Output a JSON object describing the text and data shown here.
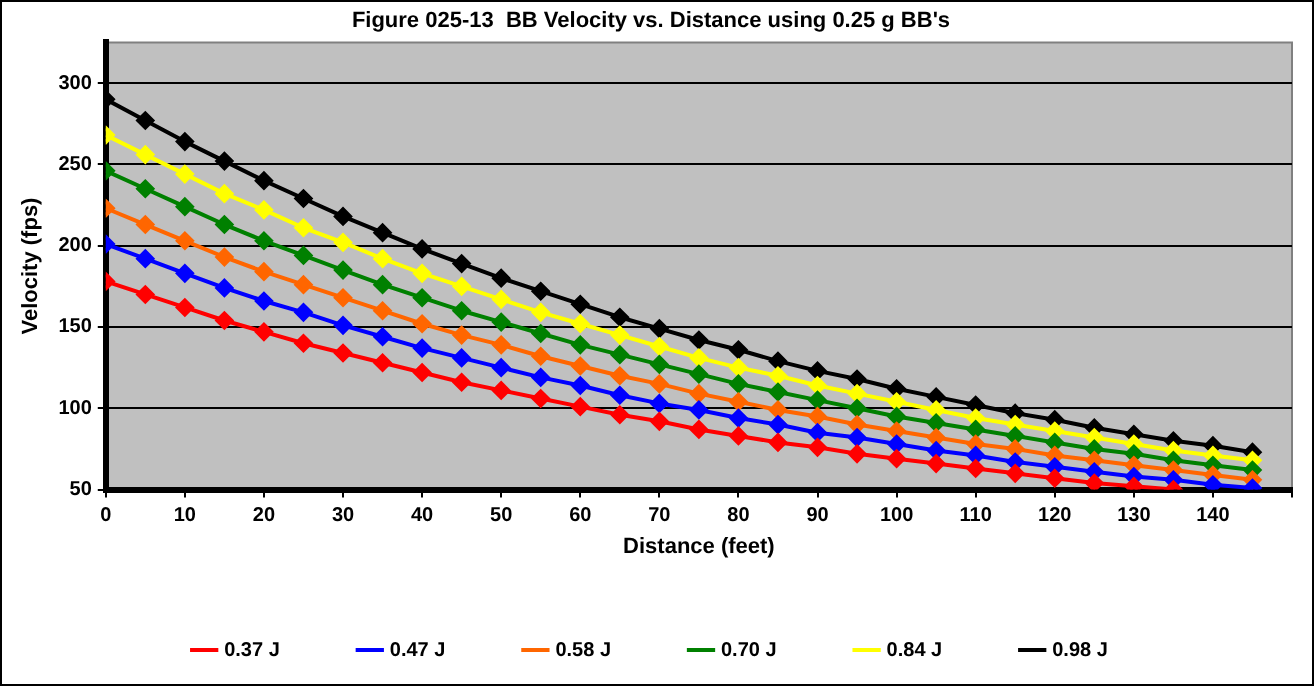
{
  "chart_data": {
    "type": "line",
    "title": "Figure 025-13  BB Velocity vs. Distance using 0.25 g BB's",
    "xlabel": "Distance (feet)",
    "ylabel": "Velocity (fps)",
    "x": [
      0,
      5,
      10,
      15,
      20,
      25,
      30,
      35,
      40,
      45,
      50,
      55,
      60,
      65,
      70,
      75,
      80,
      85,
      90,
      95,
      100,
      105,
      110,
      115,
      120,
      125,
      130,
      135,
      140,
      145
    ],
    "xlim": [
      0,
      150
    ],
    "xticks": [
      0,
      10,
      20,
      30,
      40,
      50,
      60,
      70,
      80,
      90,
      100,
      110,
      120,
      130,
      140,
      {
        "value": 150,
        "label": null
      }
    ],
    "ylim": [
      50,
      325
    ],
    "yticks": [
      50,
      100,
      150,
      200,
      250,
      300
    ],
    "grid": "y",
    "legend": "bottom",
    "marker": "diamond",
    "line_style": "solid",
    "series": [
      {
        "name": "0.37 J",
        "color": "#ff0000",
        "values": [
          178,
          170,
          162,
          154,
          147,
          140,
          134,
          128,
          122,
          116,
          111,
          106,
          101,
          96,
          92,
          87,
          83,
          79,
          76,
          72,
          69,
          66,
          63,
          60,
          57,
          54,
          52,
          50,
          null,
          null
        ]
      },
      {
        "name": "0.47 J",
        "color": "#0000ff",
        "values": [
          201,
          192,
          183,
          174,
          166,
          159,
          151,
          144,
          137,
          131,
          125,
          119,
          114,
          108,
          103,
          99,
          94,
          90,
          85,
          82,
          78,
          74,
          71,
          67,
          64,
          61,
          58,
          56,
          53,
          51
        ]
      },
      {
        "name": "0.58 J",
        "color": "#ff6600",
        "values": [
          223,
          213,
          203,
          193,
          184,
          176,
          168,
          160,
          152,
          145,
          139,
          132,
          126,
          120,
          115,
          109,
          104,
          99,
          95,
          90,
          86,
          82,
          78,
          75,
          71,
          68,
          65,
          62,
          59,
          56
        ]
      },
      {
        "name": "0.70 J",
        "color": "#008000",
        "values": [
          246,
          235,
          224,
          213,
          203,
          194,
          185,
          176,
          168,
          160,
          153,
          146,
          139,
          133,
          127,
          121,
          115,
          110,
          105,
          100,
          95,
          91,
          87,
          83,
          79,
          75,
          72,
          68,
          65,
          62
        ]
      },
      {
        "name": "0.84 J",
        "color": "#ffff00",
        "values": [
          268,
          256,
          244,
          232,
          222,
          211,
          202,
          192,
          183,
          175,
          167,
          159,
          152,
          145,
          138,
          131,
          125,
          120,
          114,
          109,
          104,
          99,
          94,
          90,
          86,
          82,
          78,
          74,
          71,
          68
        ]
      },
      {
        "name": "0.98 J",
        "color": "#000000",
        "values": [
          290,
          277,
          264,
          252,
          240,
          229,
          218,
          208,
          198,
          189,
          180,
          172,
          164,
          156,
          149,
          142,
          136,
          129,
          123,
          118,
          112,
          107,
          102,
          97,
          93,
          88,
          84,
          80,
          77,
          73
        ]
      }
    ]
  }
}
